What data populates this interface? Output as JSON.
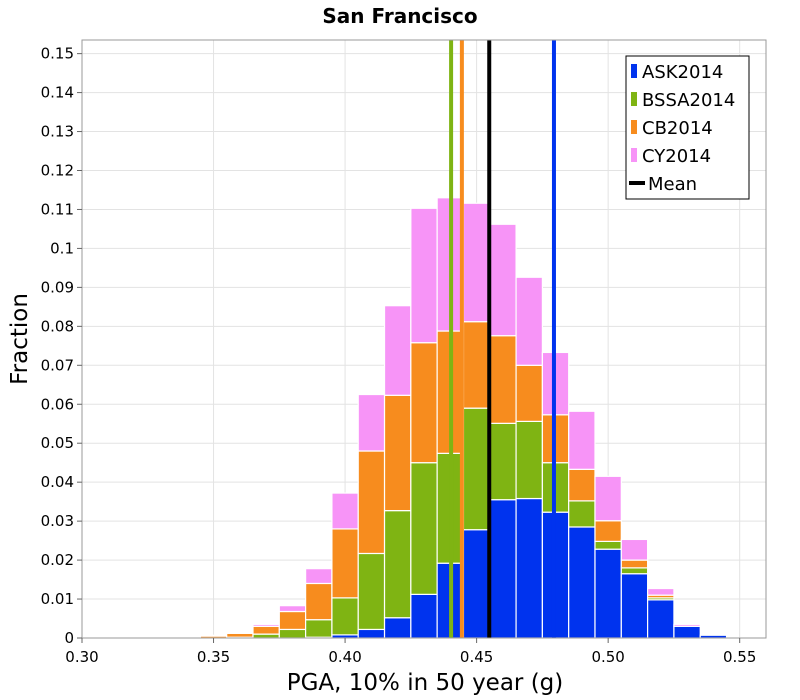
{
  "chart_data": {
    "type": "bar",
    "stacked": true,
    "title": "San Francisco",
    "xlabel": "PGA, 10% in 50 year (g)",
    "ylabel": "Fraction",
    "xlim": [
      0.3,
      0.56
    ],
    "ylim": [
      0,
      0.1535
    ],
    "bin_width": 0.01,
    "grid": true,
    "legend_position": "top-right",
    "x_ticks": [
      0.3,
      0.35,
      0.4,
      0.45,
      0.5,
      0.55
    ],
    "x_tick_labels": [
      "0.30",
      "0.35",
      "0.40",
      "0.45",
      "0.50",
      "0.55"
    ],
    "y_ticks": [
      0,
      0.01,
      0.02,
      0.03,
      0.04,
      0.05,
      0.06,
      0.07,
      0.08,
      0.09,
      0.1,
      0.11,
      0.12,
      0.13,
      0.14,
      0.15
    ],
    "y_tick_labels": [
      "0",
      "0.01",
      "0.02",
      "0.03",
      "0.04",
      "0.05",
      "0.06",
      "0.07",
      "0.08",
      "0.09",
      "0.1",
      "0.11",
      "0.12",
      "0.13",
      "0.14",
      "0.15"
    ],
    "bin_centers": [
      0.32,
      0.33,
      0.34,
      0.35,
      0.36,
      0.37,
      0.38,
      0.39,
      0.4,
      0.41,
      0.42,
      0.43,
      0.44,
      0.45,
      0.46,
      0.47,
      0.48,
      0.49,
      0.5,
      0.51,
      0.52,
      0.53,
      0.54
    ],
    "series": [
      {
        "name": "ASK2014",
        "color": "#0033ee",
        "values": [
          0,
          0,
          0,
          0,
          0,
          0,
          0,
          0.0002,
          0.0008,
          0.0022,
          0.0052,
          0.0112,
          0.0192,
          0.0278,
          0.0355,
          0.0358,
          0.0323,
          0.0285,
          0.0228,
          0.0165,
          0.0098,
          0.003,
          0.0007
        ]
      },
      {
        "name": "BSSA2014",
        "color": "#7fb413",
        "values": [
          0,
          0,
          0,
          0,
          0.0002,
          0.001,
          0.0022,
          0.0045,
          0.0095,
          0.0195,
          0.0275,
          0.0338,
          0.0282,
          0.0312,
          0.0196,
          0.0198,
          0.0127,
          0.0067,
          0.002,
          0.0015,
          0.0005,
          0,
          0
        ]
      },
      {
        "name": "CB2014",
        "color": "#f78c1e",
        "values": [
          0,
          0,
          0.0002,
          0.0005,
          0.001,
          0.002,
          0.0046,
          0.0093,
          0.0177,
          0.0263,
          0.0296,
          0.0308,
          0.0314,
          0.0222,
          0.0225,
          0.0144,
          0.0123,
          0.0081,
          0.0053,
          0.002,
          0.0007,
          0,
          0
        ]
      },
      {
        "name": "CY2014",
        "color": "#f794f7",
        "values": [
          0,
          0,
          0,
          0.0002,
          0.0002,
          0.0005,
          0.0015,
          0.0038,
          0.0092,
          0.0145,
          0.023,
          0.0345,
          0.0342,
          0.0304,
          0.0286,
          0.0226,
          0.016,
          0.0149,
          0.0114,
          0.0053,
          0.0017,
          0.0005,
          0
        ]
      }
    ],
    "vertical_lines": [
      {
        "name": "BSSA2014",
        "color": "#7fb413",
        "x": 0.4403
      },
      {
        "name": "CB2014",
        "color": "#f78c1e",
        "x": 0.4444
      },
      {
        "name": "Mean",
        "color": "#000000",
        "x": 0.4548
      },
      {
        "name": "ASK2014",
        "color": "#0033ee",
        "x": 0.4794
      }
    ],
    "legend": [
      {
        "label": "ASK2014",
        "color": "#0033ee",
        "kind": "bar"
      },
      {
        "label": "BSSA2014",
        "color": "#7fb413",
        "kind": "bar"
      },
      {
        "label": "CB2014",
        "color": "#f78c1e",
        "kind": "bar"
      },
      {
        "label": "CY2014",
        "color": "#f794f7",
        "kind": "bar"
      },
      {
        "label": "Mean",
        "color": "#000000",
        "kind": "line"
      }
    ]
  }
}
